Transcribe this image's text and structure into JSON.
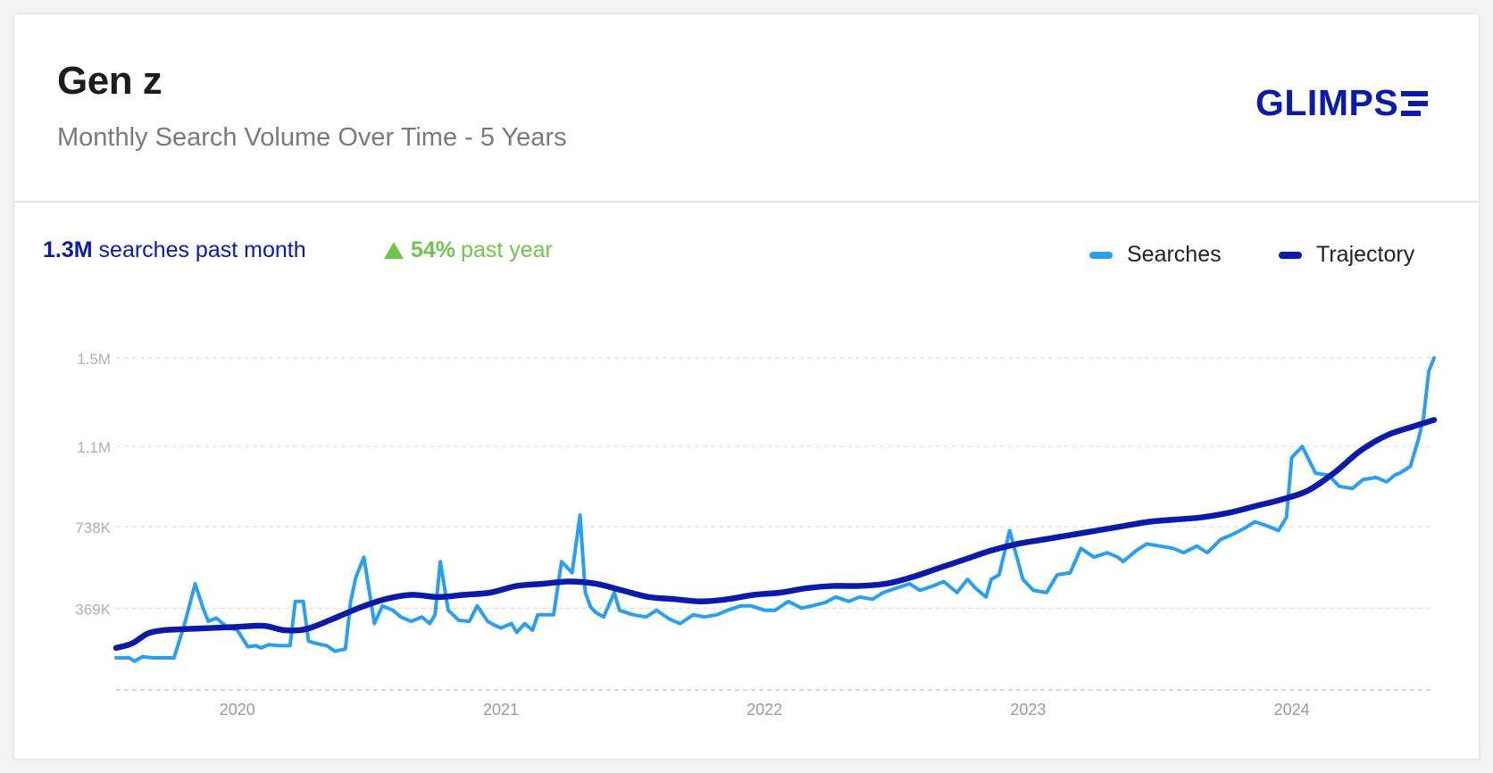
{
  "header": {
    "title": "Gen z",
    "subtitle": "Monthly Search Volume Over Time - 5 Years",
    "logo_text": "GLIMPS"
  },
  "summary": {
    "volume_value": "1.3M",
    "volume_label": "searches past month",
    "change_value": "54%",
    "change_label": "past year",
    "change_icon": "triangle-up-icon"
  },
  "legend": {
    "searches_label": "Searches",
    "trajectory_label": "Trajectory"
  },
  "colors": {
    "searches": "#2a9ff0",
    "trajectory": "#0b1aa8",
    "positive": "#70c44d",
    "brand": "#0b1aa8"
  },
  "chart_data": {
    "type": "line",
    "title": "Monthly Search Volume Over Time - 5 Years",
    "xlabel": "",
    "ylabel": "",
    "ylim": [
      0,
      1500000
    ],
    "yticks": [
      {
        "value": 369000,
        "label": "369K"
      },
      {
        "value": 738000,
        "label": "738K"
      },
      {
        "value": 1100000,
        "label": "1.1M"
      },
      {
        "value": 1500000,
        "label": "1.5M"
      }
    ],
    "xticks": [
      {
        "value": 2020.0,
        "label": "2020"
      },
      {
        "value": 2021.0,
        "label": "2021"
      },
      {
        "value": 2022.0,
        "label": "2022"
      },
      {
        "value": 2023.0,
        "label": "2023"
      },
      {
        "value": 2024.0,
        "label": "2024"
      }
    ],
    "xlim": [
      2019.54,
      2024.54
    ],
    "grid": true,
    "legend_position": "top-right",
    "series": [
      {
        "name": "Searches",
        "x": [
          2019.54,
          2019.59,
          2019.61,
          2019.64,
          2019.68,
          2019.72,
          2019.76,
          2019.8,
          2019.84,
          2019.87,
          2019.89,
          2019.92,
          2019.96,
          2020.0,
          2020.04,
          2020.07,
          2020.09,
          2020.12,
          2020.16,
          2020.2,
          2020.22,
          2020.25,
          2020.27,
          2020.3,
          2020.34,
          2020.37,
          2020.41,
          2020.43,
          2020.45,
          2020.48,
          2020.52,
          2020.55,
          2020.59,
          2020.62,
          2020.66,
          2020.7,
          2020.73,
          2020.75,
          2020.77,
          2020.8,
          2020.84,
          2020.88,
          2020.91,
          2020.95,
          2020.98,
          2021.0,
          2021.04,
          2021.06,
          2021.09,
          2021.12,
          2021.14,
          2021.17,
          2021.2,
          2021.23,
          2021.27,
          2021.3,
          2021.32,
          2021.34,
          2021.36,
          2021.39,
          2021.43,
          2021.45,
          2021.5,
          2021.55,
          2021.59,
          2021.64,
          2021.68,
          2021.73,
          2021.77,
          2021.82,
          2021.86,
          2021.91,
          2021.95,
          2022.0,
          2022.04,
          2022.09,
          2022.14,
          2022.18,
          2022.23,
          2022.27,
          2022.32,
          2022.36,
          2022.41,
          2022.45,
          2022.5,
          2022.55,
          2022.59,
          2022.64,
          2022.68,
          2022.73,
          2022.77,
          2022.8,
          2022.84,
          2022.86,
          2022.89,
          2022.93,
          2022.98,
          2023.02,
          2023.07,
          2023.11,
          2023.16,
          2023.2,
          2023.25,
          2023.3,
          2023.34,
          2023.36,
          2023.41,
          2023.45,
          2023.5,
          2023.55,
          2023.59,
          2023.64,
          2023.68,
          2023.73,
          2023.77,
          2023.82,
          2023.86,
          2023.91,
          2023.95,
          2023.98,
          2024.0,
          2024.04,
          2024.09,
          2024.14,
          2024.18,
          2024.23,
          2024.27,
          2024.32,
          2024.36,
          2024.39,
          2024.41,
          2024.45,
          2024.48,
          2024.5,
          2024.52,
          2024.54
        ],
        "y": [
          145000,
          145000,
          130000,
          150000,
          145000,
          145000,
          145000,
          300000,
          480000,
          370000,
          310000,
          325000,
          285000,
          270000,
          195000,
          200000,
          190000,
          205000,
          200000,
          200000,
          400000,
          400000,
          220000,
          210000,
          200000,
          175000,
          185000,
          400000,
          510000,
          600000,
          300000,
          380000,
          360000,
          330000,
          310000,
          330000,
          300000,
          340000,
          580000,
          360000,
          315000,
          310000,
          380000,
          310000,
          290000,
          280000,
          300000,
          260000,
          300000,
          270000,
          340000,
          340000,
          340000,
          580000,
          530000,
          790000,
          440000,
          375000,
          350000,
          330000,
          440000,
          360000,
          340000,
          330000,
          360000,
          320000,
          300000,
          340000,
          330000,
          340000,
          360000,
          380000,
          380000,
          360000,
          360000,
          400000,
          370000,
          380000,
          395000,
          420000,
          400000,
          420000,
          410000,
          440000,
          460000,
          480000,
          450000,
          470000,
          490000,
          440000,
          500000,
          460000,
          420000,
          500000,
          520000,
          720000,
          500000,
          450000,
          440000,
          520000,
          530000,
          640000,
          600000,
          620000,
          600000,
          580000,
          630000,
          660000,
          650000,
          640000,
          620000,
          650000,
          620000,
          680000,
          700000,
          730000,
          760000,
          740000,
          720000,
          780000,
          1050000,
          1100000,
          980000,
          970000,
          920000,
          910000,
          950000,
          960000,
          940000,
          970000,
          980000,
          1010000,
          1130000,
          1230000,
          1440000,
          1500000
        ]
      },
      {
        "name": "Trajectory",
        "x": [
          2019.54,
          2019.6,
          2019.66,
          2019.72,
          2019.8,
          2019.9,
          2020.0,
          2020.1,
          2020.18,
          2020.26,
          2020.36,
          2020.46,
          2020.56,
          2020.66,
          2020.76,
          2020.86,
          2020.96,
          2021.06,
          2021.16,
          2021.26,
          2021.36,
          2021.46,
          2021.56,
          2021.66,
          2021.76,
          2021.86,
          2021.96,
          2022.06,
          2022.16,
          2022.26,
          2022.36,
          2022.46,
          2022.56,
          2022.66,
          2022.76,
          2022.86,
          2022.96,
          2023.06,
          2023.16,
          2023.26,
          2023.36,
          2023.46,
          2023.56,
          2023.66,
          2023.76,
          2023.86,
          2023.96,
          2024.06,
          2024.16,
          2024.26,
          2024.36,
          2024.46,
          2024.54
        ],
        "y": [
          190000,
          210000,
          255000,
          270000,
          275000,
          280000,
          285000,
          290000,
          270000,
          275000,
          320000,
          370000,
          410000,
          430000,
          420000,
          430000,
          440000,
          470000,
          480000,
          490000,
          480000,
          450000,
          420000,
          410000,
          400000,
          410000,
          430000,
          440000,
          460000,
          470000,
          470000,
          480000,
          510000,
          550000,
          590000,
          630000,
          660000,
          680000,
          700000,
          720000,
          740000,
          760000,
          770000,
          780000,
          800000,
          830000,
          860000,
          900000,
          980000,
          1080000,
          1150000,
          1190000,
          1220000
        ]
      }
    ]
  }
}
